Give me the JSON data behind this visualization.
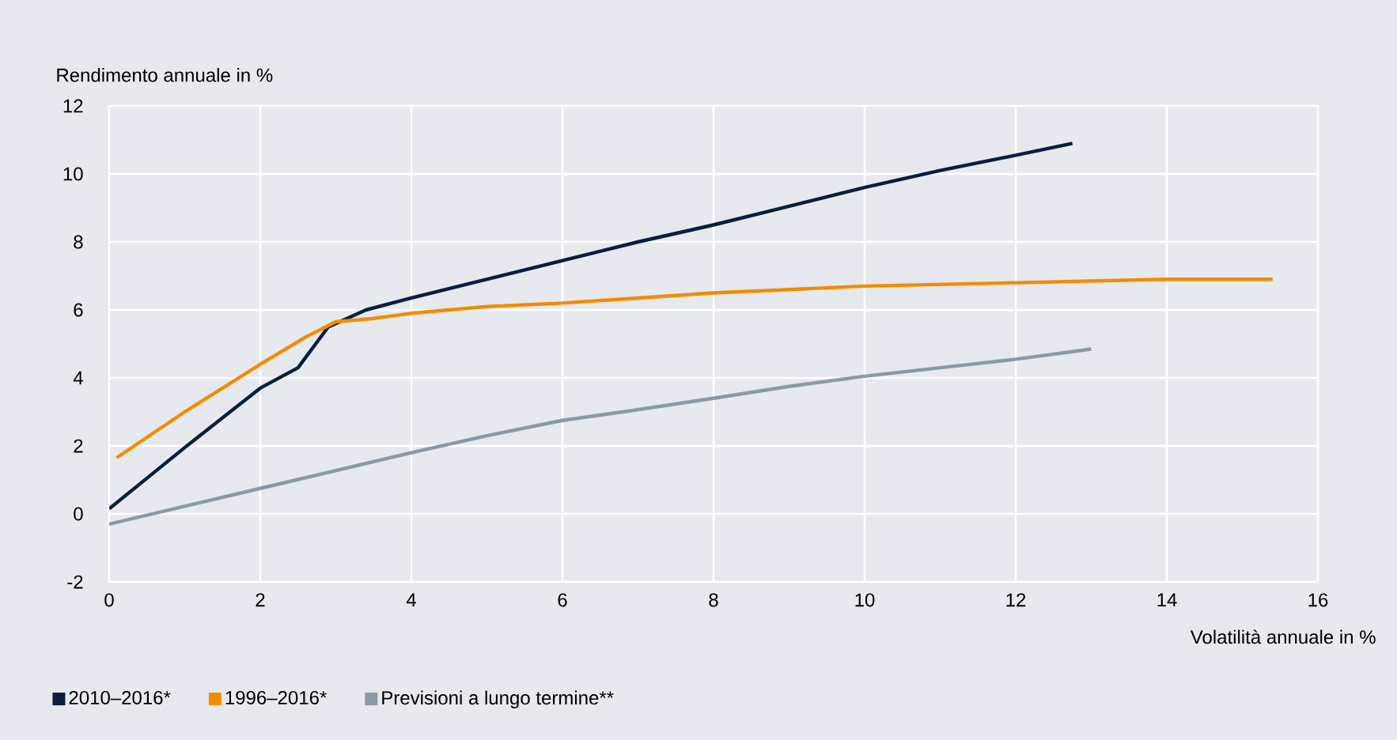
{
  "chart_data": {
    "type": "line",
    "ylabel": "Rendimento annuale in %",
    "xlabel": "Volatilità annuale in %",
    "xlim": [
      0,
      16
    ],
    "ylim": [
      -2,
      12
    ],
    "xticks": [
      0,
      2,
      4,
      6,
      8,
      10,
      12,
      14,
      16
    ],
    "yticks": [
      -2,
      0,
      2,
      4,
      6,
      8,
      10,
      12
    ],
    "grid": true,
    "legend": "bottom left",
    "marker": "none",
    "line_style": "solid",
    "series": [
      {
        "name": "2010–2016*",
        "color": "#0b1e3f",
        "x": [
          0,
          1,
          2,
          2.5,
          2.9,
          3.4,
          4,
          5,
          6,
          7,
          8,
          9,
          10,
          11,
          12,
          12.75
        ],
        "values": [
          0.15,
          1.95,
          3.7,
          4.3,
          5.5,
          6.0,
          6.35,
          6.9,
          7.45,
          8.0,
          8.5,
          9.05,
          9.6,
          10.1,
          10.55,
          10.9
        ]
      },
      {
        "name": "1996–2016*",
        "color": "#f28c00",
        "x": [
          0.1,
          1,
          2,
          2.6,
          3,
          3.5,
          4,
          5,
          6,
          7,
          8,
          9,
          10,
          12,
          13,
          14,
          15.4
        ],
        "values": [
          1.65,
          3.0,
          4.4,
          5.2,
          5.65,
          5.75,
          5.9,
          6.1,
          6.2,
          6.35,
          6.5,
          6.6,
          6.7,
          6.8,
          6.85,
          6.9,
          6.9
        ]
      },
      {
        "name": "Previsioni a lungo termine**",
        "color": "#8a9aa5",
        "x": [
          0,
          2,
          4,
          5,
          6,
          6.8,
          8,
          9,
          10,
          11,
          12,
          13
        ],
        "values": [
          -0.3,
          0.75,
          1.8,
          2.3,
          2.75,
          3.0,
          3.4,
          3.75,
          4.05,
          4.3,
          4.55,
          4.85
        ]
      }
    ]
  }
}
